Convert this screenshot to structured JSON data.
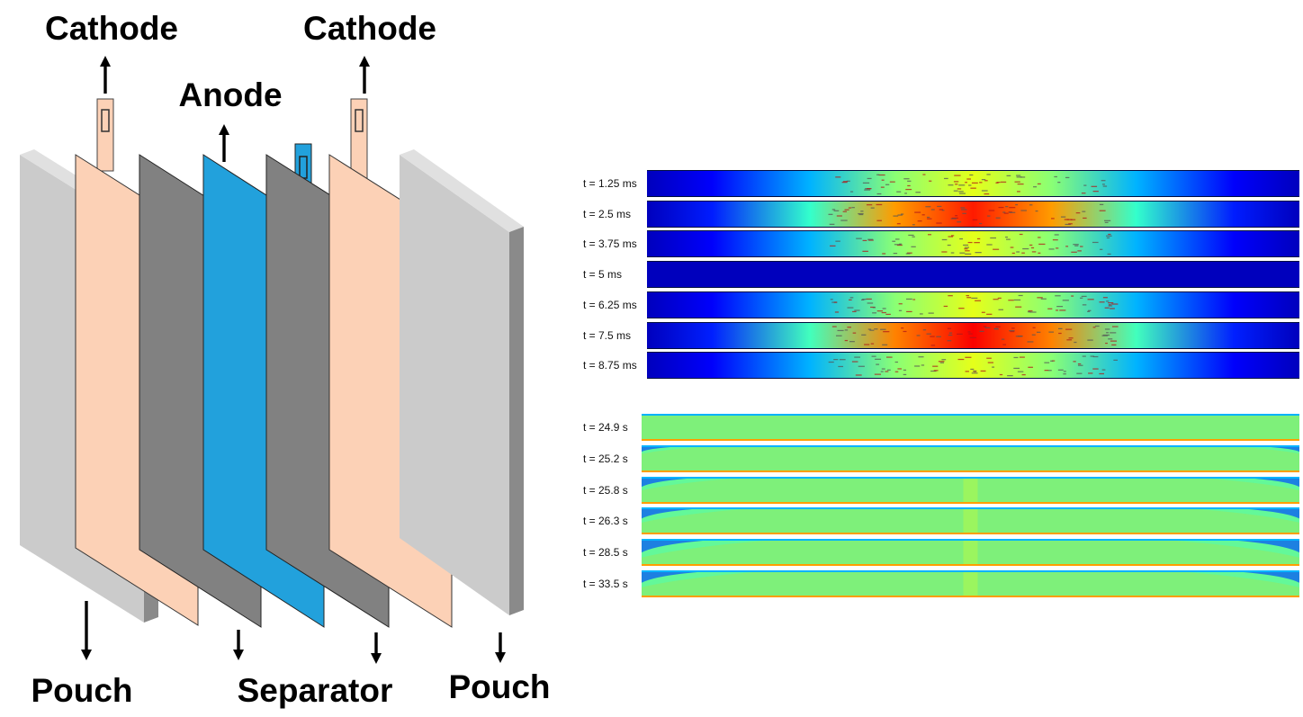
{
  "stack_diagram": {
    "layers": [
      {
        "id": "pouch-left",
        "color_face": "#cbcbcb",
        "color_side": "#8a8a8a"
      },
      {
        "id": "cathode-left",
        "color_face": "#fcd1b6",
        "color_side": "#e8b391"
      },
      {
        "id": "separator-left",
        "color_face": "#818181",
        "color_side": "#5a5a5a"
      },
      {
        "id": "anode",
        "color_face": "#22a1dc",
        "color_side": "#1479aa"
      },
      {
        "id": "separator-right",
        "color_face": "#818181",
        "color_side": "#5a5a5a"
      },
      {
        "id": "cathode-right",
        "color_face": "#fcd1b6",
        "color_side": "#e8b391"
      },
      {
        "id": "pouch-right",
        "color_face": "#cbcbcb",
        "color_side": "#8a8a8a"
      }
    ],
    "labels": {
      "cathode_left": "Cathode",
      "cathode_right": "Cathode",
      "anode": "Anode",
      "pouch_left": "Pouch",
      "separator": "Separator",
      "pouch_right": "Pouch"
    }
  },
  "panel_top": {
    "colormap": "jet",
    "rows": [
      {
        "label": "t = 1.25 ms",
        "level": 0.6
      },
      {
        "label": "t = 2.5 ms",
        "level": 0.85
      },
      {
        "label": "t = 3.75 ms",
        "level": 0.6
      },
      {
        "label": "t = 5 ms",
        "level": 0.0
      },
      {
        "label": "t = 6.25 ms",
        "level": 0.6
      },
      {
        "label": "t = 7.5 ms",
        "level": 0.88
      },
      {
        "label": "t = 8.75 ms",
        "level": 0.6
      }
    ]
  },
  "panel_bottom": {
    "colormap": "jet",
    "rows": [
      {
        "label": "t = 24.9 s",
        "edge": 0.0
      },
      {
        "label": "t = 25.2 s",
        "edge": 0.2
      },
      {
        "label": "t = 25.8 s",
        "edge": 0.5
      },
      {
        "label": "t = 26.3 s",
        "edge": 0.6
      },
      {
        "label": "t = 28.5 s",
        "edge": 0.8
      },
      {
        "label": "t = 33.5 s",
        "edge": 0.7
      }
    ]
  }
}
